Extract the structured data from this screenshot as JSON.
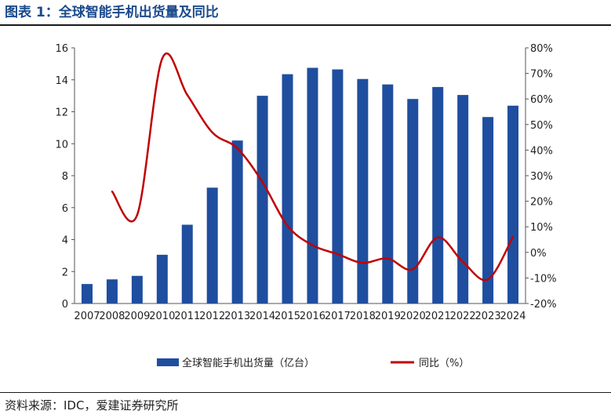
{
  "header": {
    "title": "图表 1：全球智能手机出货量及同比"
  },
  "footer": {
    "source": "资料来源：IDC，爱建证券研究所"
  },
  "colors": {
    "bar": "#1f4e9f",
    "line": "#c00000",
    "title": "#1a4a8c"
  },
  "chart_data": {
    "type": "bar",
    "categories": [
      "2007",
      "2008",
      "2009",
      "2010",
      "2011",
      "2012",
      "2013",
      "2014",
      "2015",
      "2016",
      "2017",
      "2018",
      "2019",
      "2020",
      "2021",
      "2022",
      "2023",
      "2024"
    ],
    "series": [
      {
        "name": "全球智能手机出货量（亿台）",
        "type": "bar",
        "axis": "left",
        "values": [
          1.22,
          1.51,
          1.73,
          3.05,
          4.93,
          7.25,
          10.2,
          13.0,
          14.35,
          14.75,
          14.65,
          14.05,
          13.71,
          12.8,
          13.55,
          13.05,
          11.67,
          12.38
        ]
      },
      {
        "name": "同比（%）",
        "type": "line",
        "axis": "right",
        "values": [
          null,
          23.8,
          14.6,
          75.8,
          61.6,
          46.9,
          40.7,
          27.5,
          10.4,
          2.8,
          -0.7,
          -4.1,
          -2.4,
          -6.6,
          5.9,
          -3.7,
          -10.6,
          6.1
        ]
      }
    ],
    "y_left": {
      "ticks": [
        "0",
        "2",
        "4",
        "6",
        "8",
        "10",
        "12",
        "14",
        "16"
      ],
      "lim": [
        0,
        16
      ]
    },
    "y_right": {
      "ticks": [
        "-20%",
        "-10%",
        "0%",
        "10%",
        "20%",
        "30%",
        "40%",
        "50%",
        "60%",
        "70%",
        "80%"
      ],
      "lim": [
        -20,
        80
      ]
    },
    "legend": {
      "position": "bottom"
    },
    "grid": false
  }
}
